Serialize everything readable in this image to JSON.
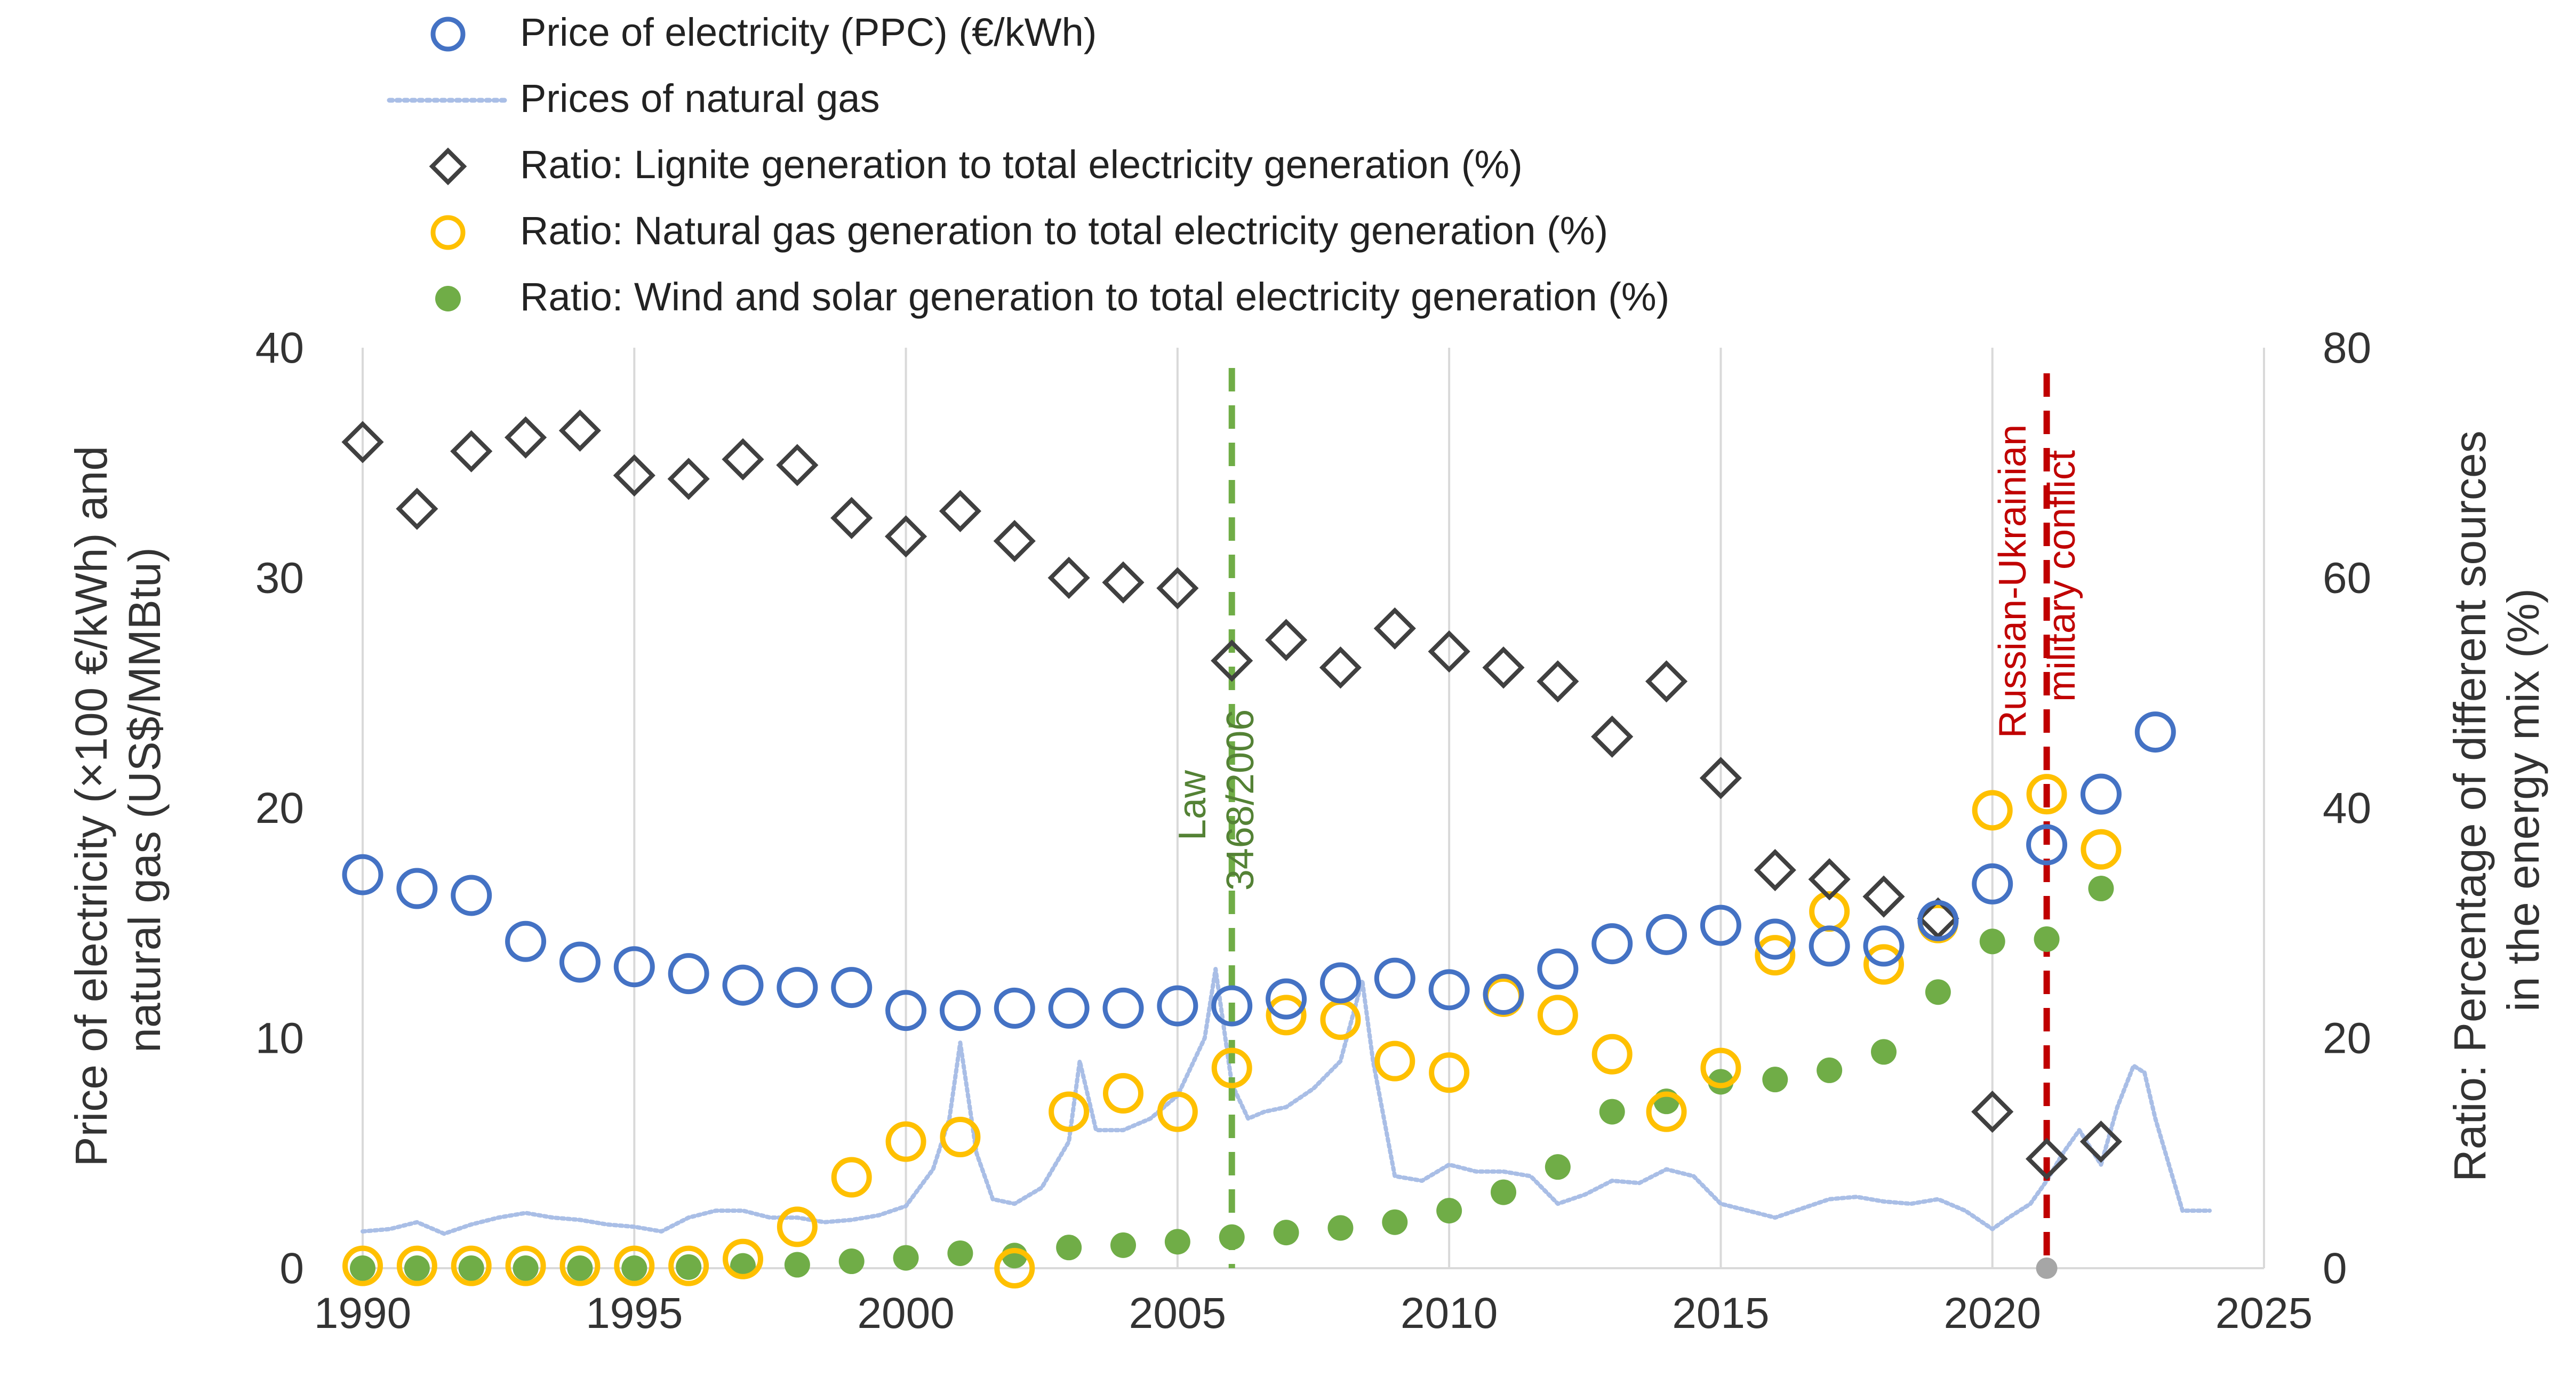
{
  "chart_data": {
    "type": "scatter",
    "title": "",
    "xlabel": "",
    "ylabel_left": "Price of electricity (×100 €/kWh) and natural gas (US$/MMBtu)",
    "ylabel_right": "Ratio: Percentage of different sources in the energy mix (%)",
    "xlim": [
      1990,
      2025
    ],
    "ylim_left": [
      0,
      40
    ],
    "ylim_right": [
      0,
      80
    ],
    "x_ticks": [
      "1990",
      "1995",
      "2000",
      "2005",
      "2010",
      "2015",
      "2020",
      "2025"
    ],
    "y_left_ticks": [
      "0",
      "10",
      "20",
      "30",
      "40"
    ],
    "y_right_ticks": [
      "0",
      "20",
      "40",
      "60",
      "80"
    ],
    "grid": "vertical",
    "legend_position": "top",
    "colors": {
      "electricity": "#4472C4",
      "gas_price": "#A9BEE6",
      "lignite": "#404040",
      "gas_ratio": "#FFC000",
      "wind_solar": "#70AD47",
      "law_line": "#70AD47",
      "conflict_line": "#C00000",
      "conflict_marker": "#A6A6A6"
    },
    "series": [
      {
        "name": "Price of electricity (PPC) (€/kWh)",
        "axis": "left",
        "x": [
          1990,
          1991,
          1992,
          1993,
          1994,
          1995,
          1996,
          1997,
          1998,
          1999,
          2000,
          2001,
          2002,
          2003,
          2004,
          2005,
          2006,
          2007,
          2008,
          2009,
          2010,
          2011,
          2012,
          2013,
          2014,
          2015,
          2016,
          2017,
          2018,
          2019,
          2020,
          2021,
          2022,
          2023
        ],
        "values": [
          17.1,
          16.5,
          16.2,
          14.2,
          13.3,
          13.1,
          12.8,
          12.3,
          12.2,
          12.2,
          11.2,
          11.2,
          11.3,
          11.3,
          11.3,
          11.4,
          11.4,
          11.7,
          12.4,
          12.6,
          12.1,
          11.9,
          13.0,
          14.1,
          14.5,
          14.9,
          14.3,
          14.0,
          14.0,
          15.1,
          16.7,
          18.4,
          20.6,
          23.3
        ]
      },
      {
        "name": "Prices of natural gas",
        "axis": "left",
        "x": [
          1990,
          1990.5,
          1991,
          1991.5,
          1992,
          1992.5,
          1993,
          1993.5,
          1994,
          1994.5,
          1995,
          1995.5,
          1996,
          1996.5,
          1997,
          1997.5,
          1998,
          1998.5,
          1999,
          1999.5,
          2000,
          2000.5,
          2000.8,
          2001,
          2001.3,
          2001.6,
          2002,
          2002.5,
          2003,
          2003.2,
          2003.5,
          2004,
          2004.5,
          2005,
          2005.5,
          2005.7,
          2006,
          2006.3,
          2006.6,
          2007,
          2007.5,
          2008,
          2008.4,
          2008.6,
          2009,
          2009.5,
          2010,
          2010.5,
          2011,
          2011.5,
          2012,
          2012.5,
          2013,
          2013.5,
          2014,
          2014.5,
          2015,
          2015.5,
          2016,
          2016.5,
          2017,
          2017.5,
          2018,
          2018.5,
          2019,
          2019.5,
          2020,
          2020.3,
          2020.7,
          2021,
          2021.3,
          2021.6,
          2022,
          2022.3,
          2022.6,
          2022.8,
          2023,
          2023.5,
          2024
        ],
        "values": [
          1.6,
          1.7,
          2.0,
          1.5,
          1.9,
          2.2,
          2.4,
          2.2,
          2.1,
          1.9,
          1.8,
          1.6,
          2.2,
          2.5,
          2.5,
          2.2,
          2.2,
          2.0,
          2.1,
          2.3,
          2.7,
          4.3,
          6.5,
          9.8,
          5.0,
          3.0,
          2.8,
          3.5,
          5.5,
          9.0,
          6.0,
          6.0,
          6.5,
          7.5,
          10.0,
          13.0,
          8.0,
          6.5,
          6.8,
          7.0,
          7.8,
          9.0,
          12.5,
          9.0,
          4.0,
          3.8,
          4.5,
          4.2,
          4.2,
          4.0,
          2.8,
          3.2,
          3.8,
          3.7,
          4.3,
          4.0,
          2.8,
          2.5,
          2.2,
          2.6,
          3.0,
          3.1,
          2.9,
          2.8,
          3.0,
          2.5,
          1.7,
          2.2,
          2.8,
          3.8,
          5.0,
          6.0,
          4.5,
          7.0,
          8.8,
          8.5,
          6.5,
          2.5,
          2.5
        ]
      },
      {
        "name": "Ratio: Lignite generation to total electricity generation (%)",
        "axis": "right",
        "x": [
          1990,
          1991,
          1992,
          1993,
          1994,
          1995,
          1996,
          1997,
          1998,
          1999,
          2000,
          2001,
          2002,
          2003,
          2004,
          2005,
          2006,
          2007,
          2008,
          2009,
          2010,
          2011,
          2012,
          2013,
          2014,
          2015,
          2016,
          2017,
          2018,
          2019,
          2020,
          2021,
          2022
        ],
        "values": [
          71.8,
          66.0,
          71.0,
          72.2,
          72.8,
          68.9,
          68.6,
          70.3,
          69.8,
          65.2,
          63.6,
          65.8,
          63.2,
          60.0,
          59.6,
          59.1,
          52.8,
          54.6,
          52.2,
          55.6,
          53.6,
          52.2,
          51.0,
          46.2,
          51.0,
          42.6,
          34.6,
          33.8,
          32.3,
          30.4,
          13.6,
          9.5,
          11.0
        ]
      },
      {
        "name": "Ratio: Natural gas generation to total electricity generation (%)",
        "axis": "right",
        "x": [
          1990,
          1991,
          1992,
          1993,
          1994,
          1995,
          1996,
          1997,
          1998,
          1999,
          2000,
          2001,
          2002,
          2003,
          2004,
          2005,
          2006,
          2007,
          2008,
          2009,
          2010,
          2011,
          2012,
          2013,
          2014,
          2015,
          2016,
          2017,
          2018,
          2019,
          2020,
          2021,
          2022
        ],
        "values": [
          0.2,
          0.2,
          0.2,
          0.2,
          0.2,
          0.2,
          0.2,
          0.8,
          3.6,
          7.9,
          11.0,
          11.4,
          0.0,
          13.6,
          15.2,
          13.6,
          17.4,
          22.0,
          21.6,
          18.0,
          17.0,
          23.6,
          22.0,
          18.6,
          13.6,
          17.4,
          27.2,
          31.0,
          26.4,
          30.0,
          39.8,
          41.2,
          36.4
        ]
      },
      {
        "name": "Ratio: Wind and solar generation to total electricity generation (%)",
        "axis": "right",
        "x": [
          1990,
          1991,
          1992,
          1993,
          1994,
          1995,
          1996,
          1997,
          1998,
          1999,
          2000,
          2001,
          2002,
          2003,
          2004,
          2005,
          2006,
          2007,
          2008,
          2009,
          2010,
          2011,
          2012,
          2013,
          2014,
          2015,
          2016,
          2017,
          2018,
          2019,
          2020,
          2021,
          2022
        ],
        "values": [
          0.0,
          0.0,
          0.0,
          0.0,
          0.0,
          0.0,
          0.1,
          0.2,
          0.3,
          0.6,
          0.9,
          1.3,
          1.1,
          1.8,
          2.0,
          2.3,
          2.7,
          3.1,
          3.5,
          4.0,
          5.0,
          6.6,
          8.8,
          13.6,
          14.5,
          16.2,
          16.4,
          17.2,
          18.8,
          24.0,
          28.4,
          28.6,
          33.0
        ]
      }
    ],
    "annotations": [
      {
        "id": "law",
        "x": 2006,
        "line1": "Law",
        "line2": "3468/2006"
      },
      {
        "id": "conflict",
        "x": 2021,
        "line1": "Russian-Ukrainian",
        "line2": "military conflict"
      }
    ]
  }
}
